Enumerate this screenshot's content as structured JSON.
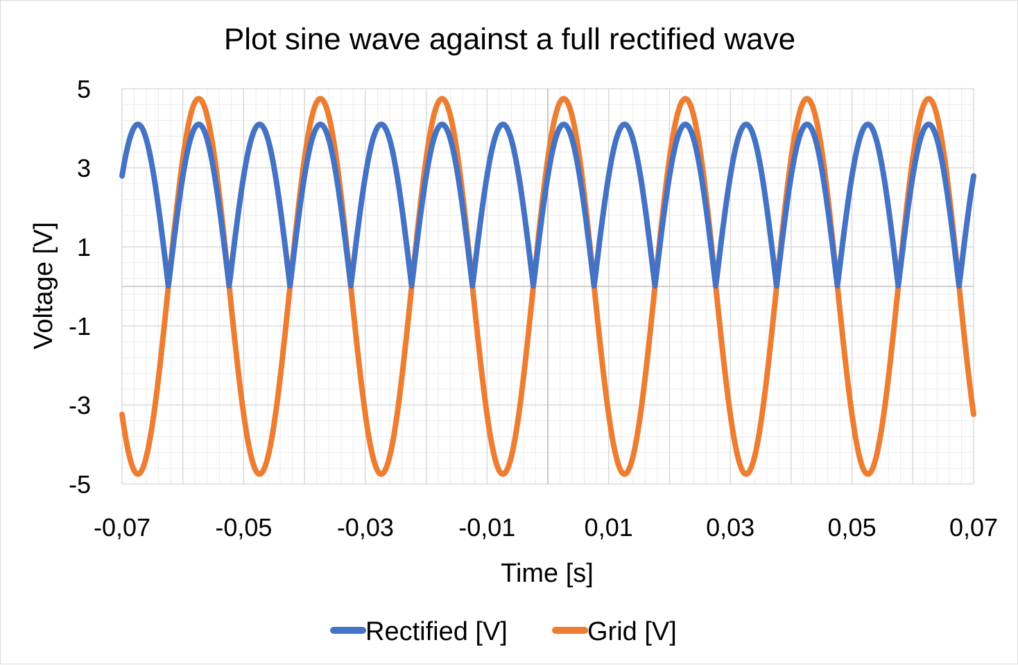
{
  "chart_data": {
    "type": "line",
    "title": "Plot sine wave against a full rectified wave",
    "xlabel": "Time [s]",
    "ylabel": "Voltage [V]",
    "xlim": [
      -0.07,
      0.07
    ],
    "ylim": [
      -5,
      5
    ],
    "x_ticks": [
      -0.07,
      -0.05,
      -0.03,
      -0.01,
      0.01,
      0.03,
      0.05,
      0.07
    ],
    "x_tick_labels": [
      "-0,07",
      "-0,05",
      "-0,03",
      "-0,01",
      "0,01",
      "0,03",
      "0,05",
      "0,07"
    ],
    "y_ticks": [
      5,
      3,
      1,
      -1,
      -3,
      -5
    ],
    "y_tick_labels": [
      "5",
      "3",
      "1",
      "-1",
      "-3",
      "-5"
    ],
    "grid": true,
    "legend_position": "bottom",
    "x_step": 0.0002,
    "series": [
      {
        "name": "Rectified [V]",
        "color": "#4472c4",
        "function": "abs_sine",
        "amplitude": 4.1,
        "frequency_hz": 50,
        "phase_rad": 0.75,
        "offset": 0
      },
      {
        "name": "Grid [V]",
        "color": "#ed7d31",
        "function": "sine",
        "amplitude": 4.75,
        "frequency_hz": 50,
        "phase_rad": 0.75,
        "offset": 0
      }
    ]
  }
}
